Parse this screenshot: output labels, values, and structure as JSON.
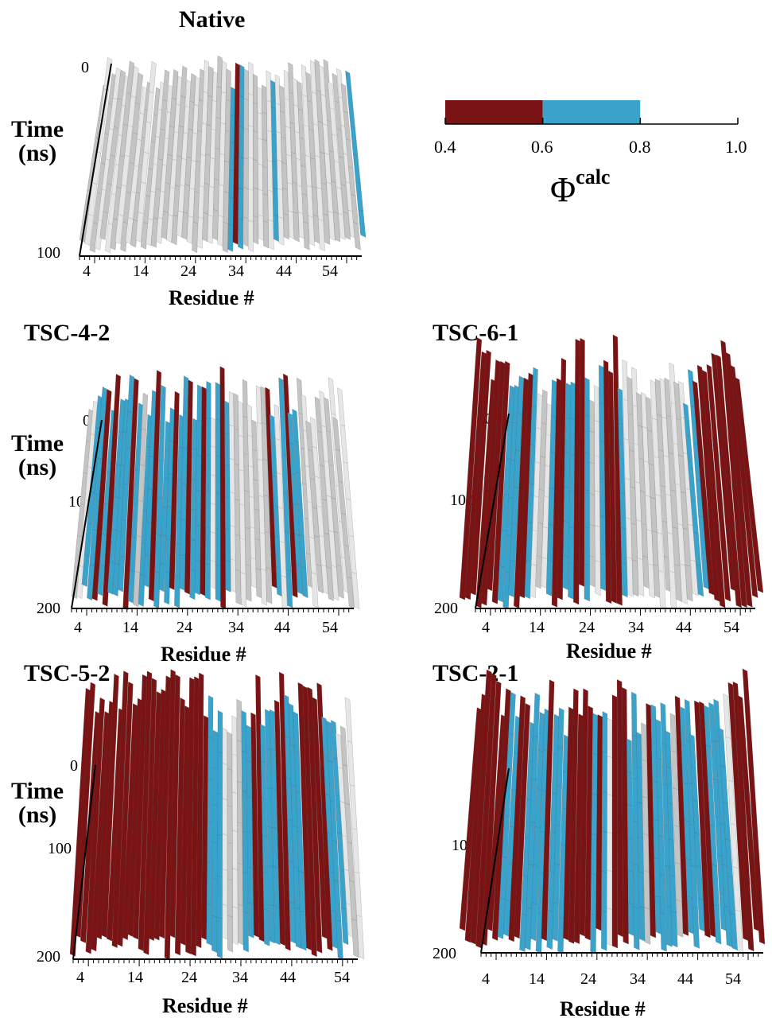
{
  "colors": {
    "low": "#7a1414",
    "mid": "#3aa3cc",
    "high": "#c4c4c4",
    "high_light": "#e6e6e6",
    "axis": "#000000"
  },
  "legend": {
    "symbol": "Φ",
    "superscript": "calc",
    "ticks": [
      "0.4",
      "0.6",
      "0.8",
      "1.0"
    ],
    "bins": [
      {
        "from": 0.4,
        "to": 0.6,
        "color": "#7a1414"
      },
      {
        "from": 0.6,
        "to": 0.8,
        "color": "#3aa3cc"
      },
      {
        "from": 0.8,
        "to": 1.0,
        "color": "#ffffff"
      }
    ]
  },
  "chart_data": [
    {
      "type": "heatmap",
      "title": "Native",
      "xlabel": "Residue #",
      "ylabel_line1": "Time",
      "ylabel_line2": "(ns)",
      "xticks": [
        "4",
        "14",
        "24",
        "34",
        "44",
        "54"
      ],
      "yticks": [
        "0",
        "100"
      ],
      "xlim": [
        1,
        56
      ],
      "ylim": [
        0,
        100
      ],
      "low_residues": [
        31
      ],
      "mid_residues": [
        30,
        32,
        39,
        56
      ],
      "note_values": "Phi_calc per residue, binned 0.4-0.6 / 0.6-0.8 / 0.8-1.0"
    },
    {
      "type": "heatmap",
      "title": "TSC-4-2",
      "xlabel": "Residue #",
      "ylabel_line1": "Time",
      "ylabel_line2": "(ns)",
      "xticks": [
        "4",
        "14",
        "24",
        "34",
        "44",
        "54"
      ],
      "yticks": [
        "0",
        "100",
        "200"
      ],
      "xlim": [
        1,
        56
      ],
      "ylim": [
        0,
        200
      ],
      "low_residues": [
        5,
        7,
        11,
        16,
        20,
        23,
        26,
        30,
        40,
        44
      ],
      "mid_residues": [
        3,
        4,
        6,
        8,
        9,
        10,
        12,
        14,
        15,
        17,
        18,
        19,
        21,
        22,
        24,
        25,
        27,
        29,
        31,
        41,
        43,
        45,
        46
      ]
    },
    {
      "type": "heatmap",
      "title": "TSC-6-1",
      "xlabel": "Residue #",
      "ylabel_line1": "Time",
      "ylabel_line2": "(ns)",
      "xticks": [
        "4",
        "14",
        "24",
        "34",
        "44",
        "54"
      ],
      "yticks": [
        "0",
        "100",
        "200"
      ],
      "xlim": [
        1,
        56
      ],
      "ylim": [
        0,
        200
      ],
      "low_residues": [
        1,
        2,
        3,
        4,
        5,
        6,
        7,
        11,
        12,
        18,
        19,
        22,
        23,
        28,
        29,
        30,
        47,
        48,
        49,
        50,
        51,
        52,
        53,
        54,
        55,
        56
      ],
      "mid_residues": [
        8,
        9,
        10,
        13,
        17,
        20,
        21,
        24,
        27,
        31,
        45,
        46
      ]
    },
    {
      "type": "heatmap",
      "title": "TSC-5-2",
      "xlabel": "Residue #",
      "ylabel_line1": "Time",
      "ylabel_line2": "(ns)",
      "xticks": [
        "4",
        "14",
        "24",
        "34",
        "44",
        "54"
      ],
      "yticks": [
        "0",
        "100",
        "200"
      ],
      "xlim": [
        1,
        56
      ],
      "ylim": [
        0,
        200
      ],
      "low_residues": [
        1,
        2,
        3,
        4,
        5,
        6,
        7,
        8,
        9,
        10,
        11,
        12,
        13,
        14,
        15,
        16,
        17,
        18,
        19,
        20,
        21,
        22,
        23,
        24,
        25,
        26,
        36,
        37,
        41,
        42,
        46,
        47,
        48,
        49,
        50
      ],
      "mid_residues": [
        27,
        28,
        29,
        34,
        35,
        38,
        39,
        40,
        43,
        44,
        45,
        51,
        52,
        53
      ]
    },
    {
      "type": "heatmap",
      "title": "TSC-2-1",
      "xlabel": "Residue #",
      "ylabel_line1": "Time",
      "ylabel_line2": "(ns)",
      "xticks": [
        "4",
        "14",
        "24",
        "34",
        "44",
        "54"
      ],
      "yticks": [
        "0",
        "100",
        "200"
      ],
      "xlim": [
        1,
        56
      ],
      "ylim": [
        0,
        200
      ],
      "low_residues": [
        1,
        2,
        3,
        4,
        5,
        6,
        7,
        10,
        11,
        16,
        20,
        21,
        22,
        23,
        24,
        26,
        29,
        30,
        31,
        36,
        42,
        46,
        47,
        53,
        54,
        55,
        56
      ],
      "mid_residues": [
        8,
        9,
        12,
        13,
        14,
        15,
        17,
        18,
        19,
        25,
        27,
        32,
        33,
        34,
        37,
        38,
        39,
        40,
        43,
        44,
        45,
        48,
        49,
        50,
        51
      ]
    }
  ]
}
